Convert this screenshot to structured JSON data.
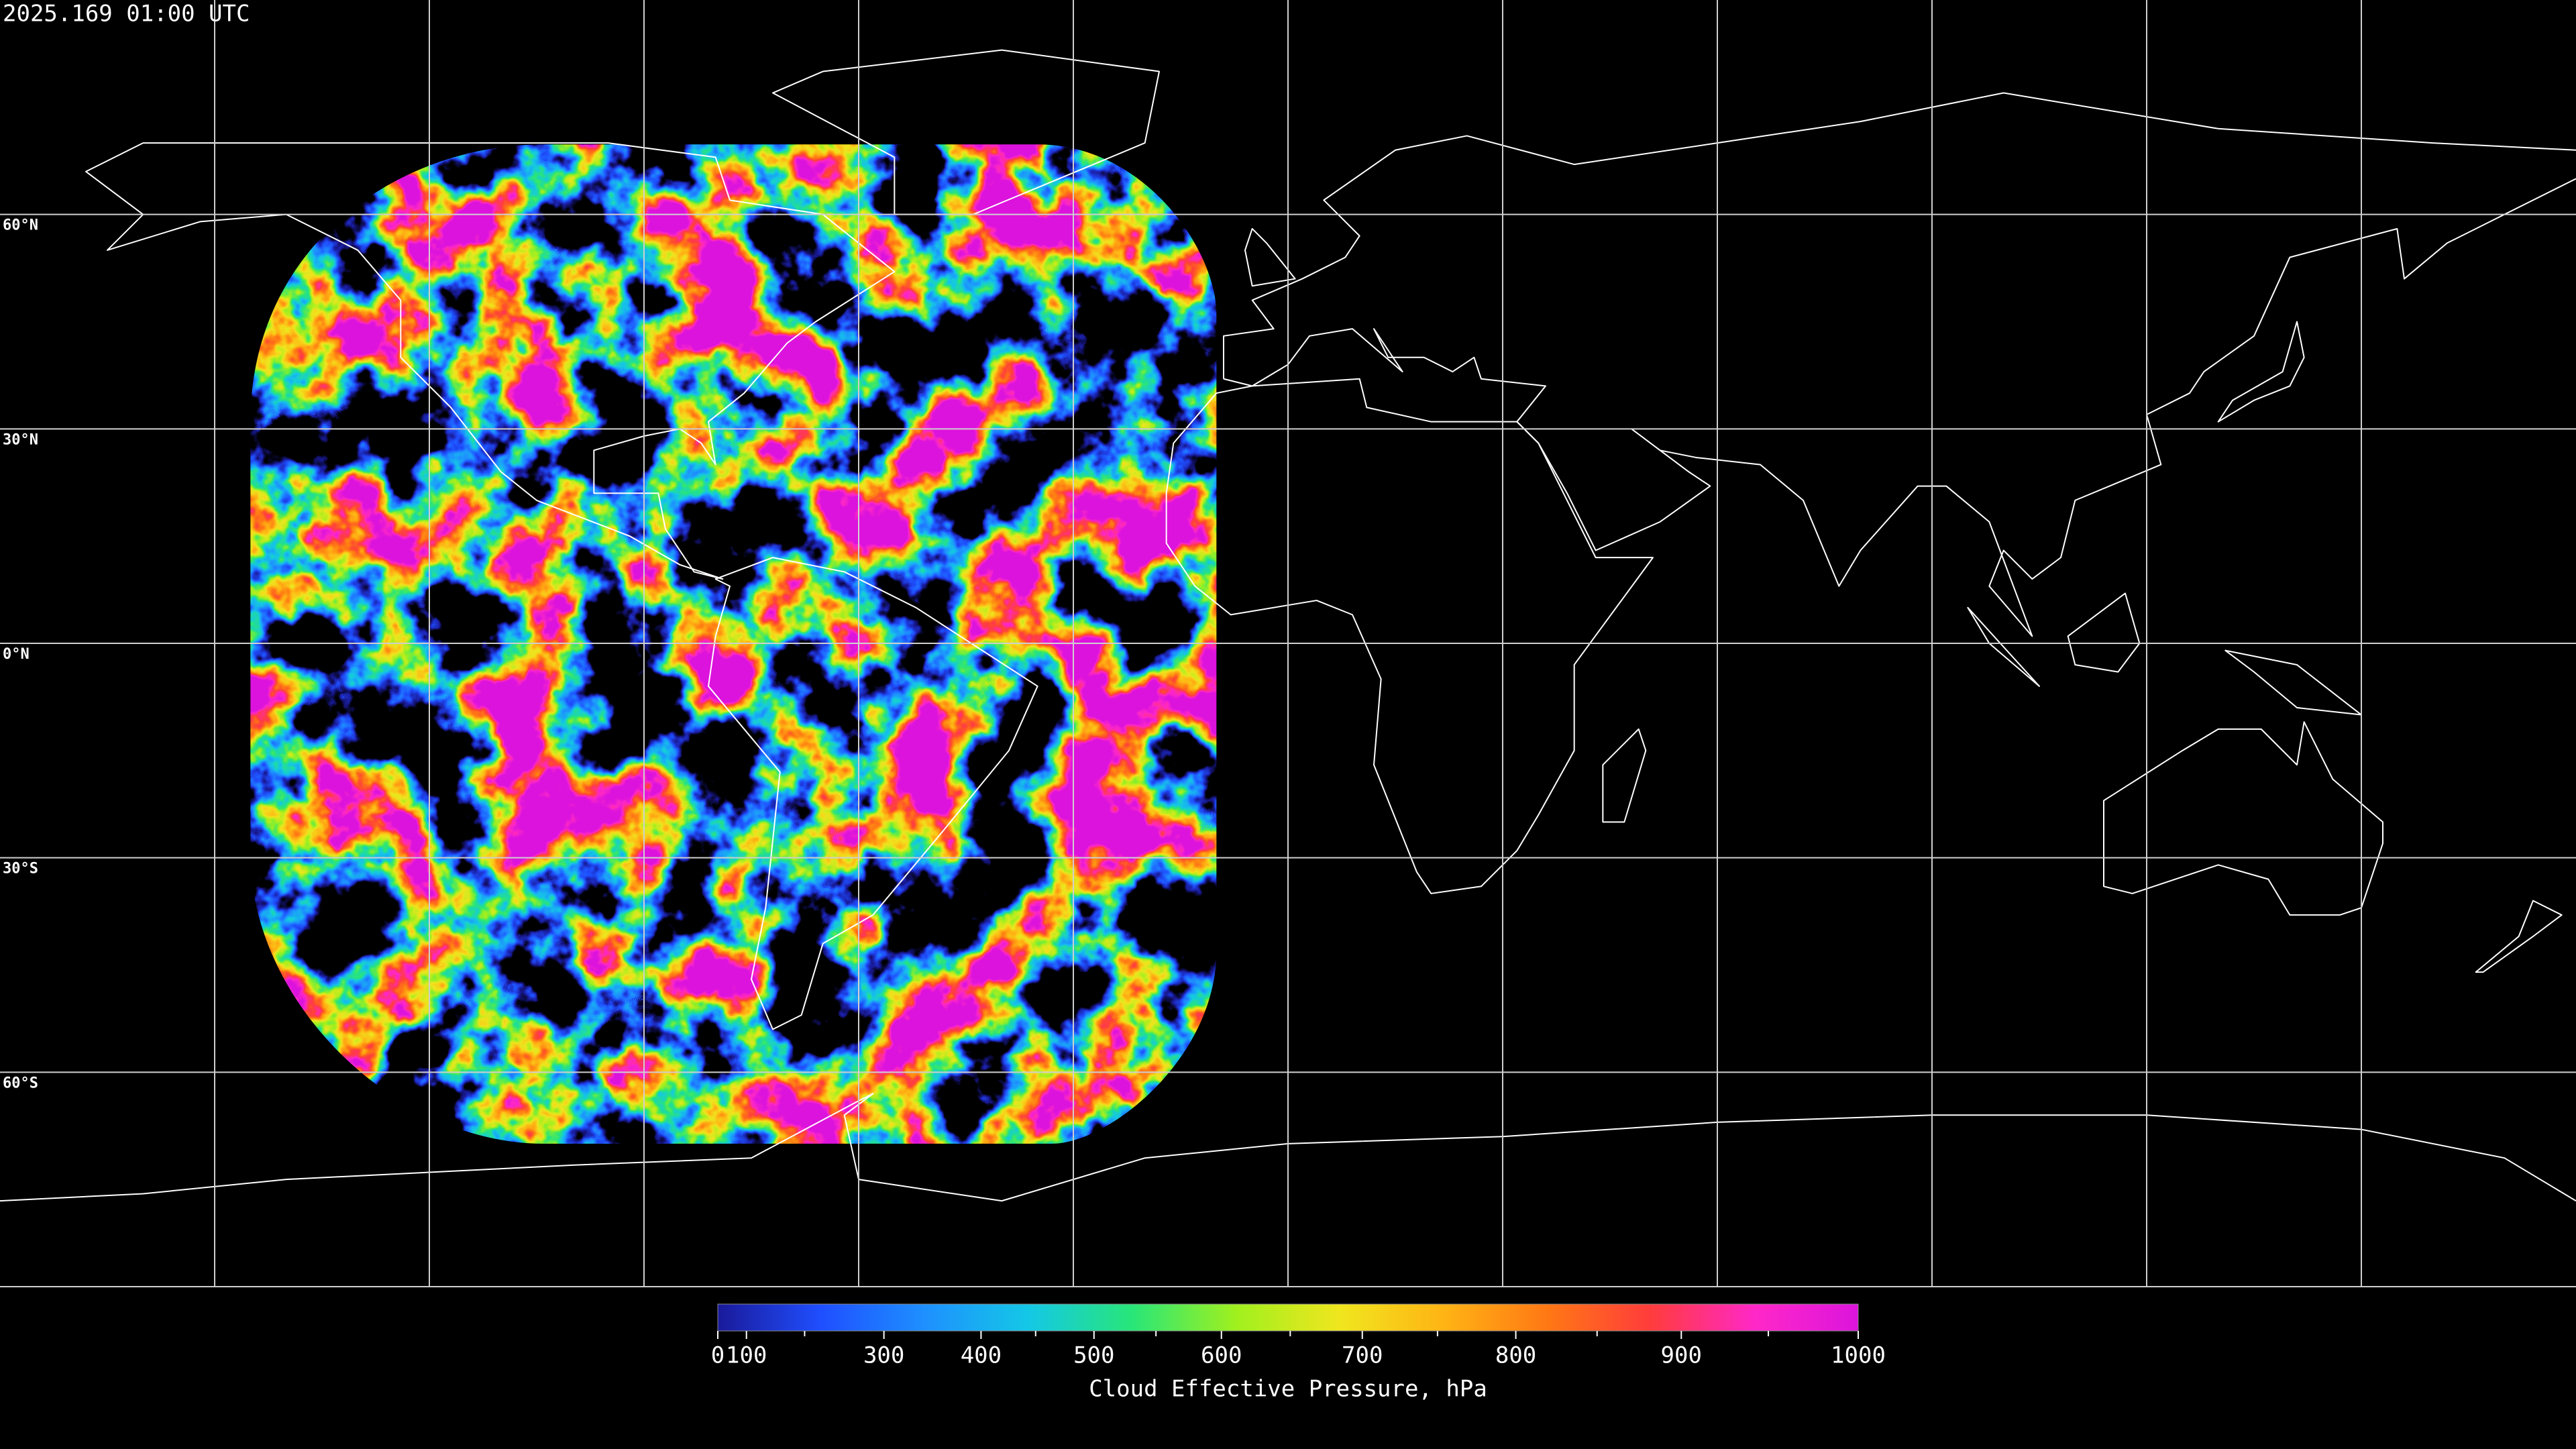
{
  "header": {
    "timestamp": "2025.169 01:00 UTC"
  },
  "map": {
    "xlim": [
      -180,
      180
    ],
    "ylim": [
      -90,
      90
    ],
    "lon_lines": [
      -150,
      -120,
      -90,
      -60,
      -30,
      0,
      30,
      60,
      90,
      120,
      150
    ],
    "lat_lines": [
      {
        "value": 60,
        "label": "60°N"
      },
      {
        "value": 30,
        "label": "30°N"
      },
      {
        "value": 0,
        "label": "0°N"
      },
      {
        "value": -30,
        "label": "30°S"
      },
      {
        "value": -60,
        "label": "60°S"
      }
    ],
    "grid_color": "#cfcfcf",
    "coastline_color": "#ffffff"
  },
  "colorbar": {
    "label": "Cloud Effective Pressure, hPa",
    "lim": [
      0,
      1000
    ],
    "ticks": [
      0,
      100,
      300,
      400,
      500,
      600,
      700,
      800,
      900,
      1000
    ],
    "minor_ticks": [
      200,
      450,
      550,
      650,
      750,
      850,
      950
    ],
    "colormap": [
      "#1a1a9a",
      "#1f4fff",
      "#1e90ff",
      "#14c8e6",
      "#28e678",
      "#a0f01e",
      "#f0e61e",
      "#ffb414",
      "#ff7814",
      "#ff3c3c",
      "#ff28c8",
      "#dc14dc"
    ]
  }
}
